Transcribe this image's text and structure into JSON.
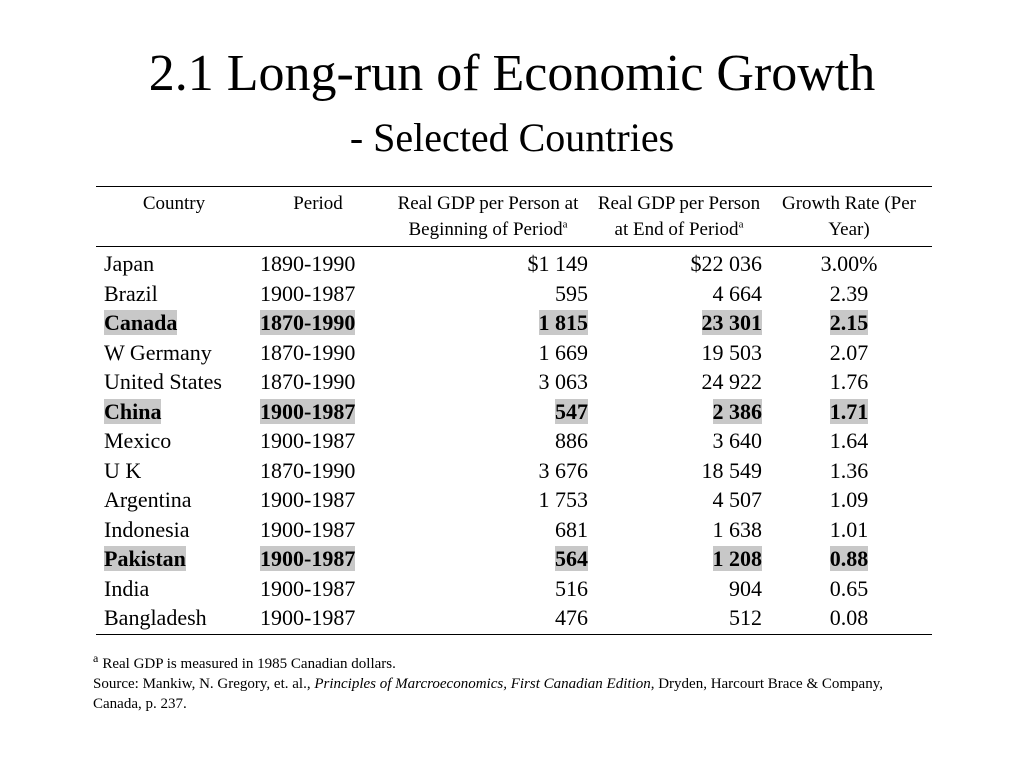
{
  "title": "2.1 Long-run of Economic Growth",
  "subtitle": "- Selected Countries",
  "table": {
    "headers": {
      "country": "Country",
      "period": "Period",
      "begin": "Real GDP per Person at Beginning of Period",
      "begin_sup": "a",
      "end": "Real GDP per Person at End of Period",
      "end_sup": "a",
      "rate": "Growth Rate (Per Year)"
    },
    "rows": [
      {
        "country": "Japan",
        "period": "1890-1990",
        "begin": "$1 149",
        "end": "$22 036",
        "rate": "3.00%",
        "highlight": false
      },
      {
        "country": "Brazil",
        "period": "1900-1987",
        "begin": "595",
        "end": "4 664",
        "rate": "2.39",
        "highlight": false
      },
      {
        "country": "Canada",
        "period": "1870-1990",
        "begin": "1 815",
        "end": "23 301",
        "rate": "2.15",
        "highlight": true
      },
      {
        "country": "W Germany",
        "period": "1870-1990",
        "begin": "1 669",
        "end": "19 503",
        "rate": "2.07",
        "highlight": false
      },
      {
        "country": "United States",
        "period": "1870-1990",
        "begin": "3 063",
        "end": "24 922",
        "rate": "1.76",
        "highlight": false
      },
      {
        "country": "China",
        "period": "1900-1987",
        "begin": "547",
        "end": "2 386",
        "rate": "1.71",
        "highlight": true
      },
      {
        "country": "Mexico",
        "period": "1900-1987",
        "begin": "886",
        "end": "3 640",
        "rate": "1.64",
        "highlight": false
      },
      {
        "country": "U K",
        "period": "1870-1990",
        "begin": "3 676",
        "end": "18 549",
        "rate": "1.36",
        "highlight": false
      },
      {
        "country": "Argentina",
        "period": "1900-1987",
        "begin": "1 753",
        "end": "4 507",
        "rate": "1.09",
        "highlight": false
      },
      {
        "country": "Indonesia",
        "period": "1900-1987",
        "begin": "681",
        "end": "1 638",
        "rate": "1.01",
        "highlight": false
      },
      {
        "country": "Pakistan",
        "period": "1900-1987",
        "begin": "564",
        "end": "1 208",
        "rate": "0.88",
        "highlight": true
      },
      {
        "country": "India",
        "period": "1900-1987",
        "begin": "516",
        "end": "904",
        "rate": "0.65",
        "highlight": false
      },
      {
        "country": "Bangladesh",
        "period": "1900-1987",
        "begin": "476",
        "end": "512",
        "rate": "0.08",
        "highlight": false
      }
    ],
    "highlight_color": "#c8c8c8"
  },
  "footnote": {
    "marker": "a",
    "text": "Real GDP is measured in 1985 Canadian dollars.",
    "source_prefix": "Source: Mankiw, N. Gregory, et. al., ",
    "source_title": "Principles of Marcroeconomics, First Canadian Edition",
    "source_suffix": ", Dryden, Harcourt Brace & Company, Canada, p. 237."
  }
}
